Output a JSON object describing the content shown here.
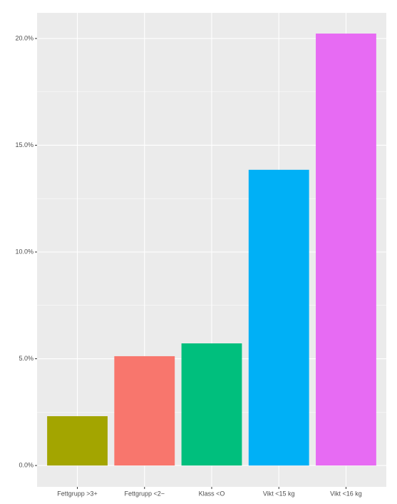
{
  "chart_data": {
    "type": "bar",
    "categories": [
      "Fettgrupp >3+",
      "Fettgrupp <2−",
      "Klass <O",
      "Vikt <15 kg",
      "Vikt <16 kg"
    ],
    "values": [
      2.31,
      5.12,
      5.72,
      13.85,
      20.23
    ],
    "colors": [
      "#a3a500",
      "#f8766d",
      "#00bf7d",
      "#00b0f6",
      "#e76bf3"
    ],
    "ylim": [
      -1.0,
      21.2
    ],
    "yticks": [
      {
        "value": 0,
        "label": "0.0%"
      },
      {
        "value": 5,
        "label": "5.0%"
      },
      {
        "value": 10,
        "label": "10.0%"
      },
      {
        "value": 15,
        "label": "15.0%"
      },
      {
        "value": 20,
        "label": "20.0%"
      }
    ],
    "grid": true
  }
}
